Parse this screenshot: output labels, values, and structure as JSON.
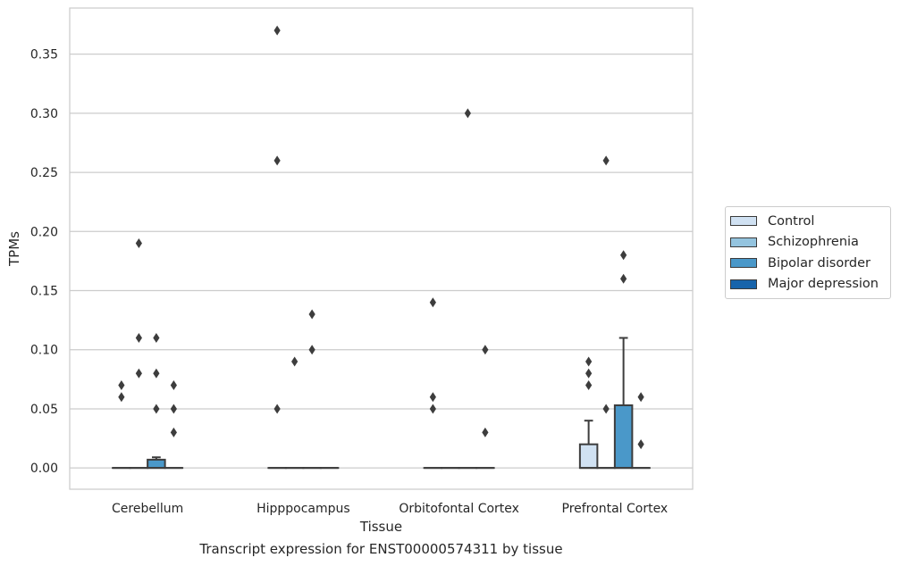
{
  "chart_data": {
    "type": "box",
    "title": "",
    "caption": "Transcript expression for ENST00000574311 by tissue",
    "xlabel": "Tissue",
    "ylabel": "TPMs",
    "ylim": [
      -0.018,
      0.389
    ],
    "yticks": [
      "0.00",
      "0.05",
      "0.10",
      "0.15",
      "0.20",
      "0.25",
      "0.30",
      "0.35"
    ],
    "ytick_values": [
      0,
      0.05,
      0.1,
      0.15,
      0.2,
      0.25,
      0.3,
      0.35
    ],
    "grid": "horizontal",
    "legend_position": "right",
    "categories": [
      "Cerebellum",
      "Hipppocampus",
      "Orbitofontal Cortex",
      "Prefrontal Cortex"
    ],
    "series": [
      {
        "name": "Control",
        "color": "#d0e1f2",
        "boxes": [
          {
            "q1": 0,
            "median": 0,
            "q3": 0,
            "whisker_low": 0,
            "whisker_high": 0,
            "outliers": [
              0.07,
              0.06
            ]
          },
          {
            "q1": 0,
            "median": 0,
            "q3": 0,
            "whisker_low": 0,
            "whisker_high": 0,
            "outliers": [
              0.37,
              0.26,
              0.05
            ]
          },
          {
            "q1": 0,
            "median": 0,
            "q3": 0,
            "whisker_low": 0,
            "whisker_high": 0,
            "outliers": [
              0.14,
              0.06,
              0.05
            ]
          },
          {
            "q1": 0,
            "median": 0,
            "q3": 0.02,
            "whisker_low": 0,
            "whisker_high": 0.04,
            "outliers": [
              0.09,
              0.08,
              0.07
            ]
          }
        ]
      },
      {
        "name": "Schizophrenia",
        "color": "#94c4df",
        "boxes": [
          {
            "q1": 0,
            "median": 0,
            "q3": 0,
            "whisker_low": 0,
            "whisker_high": 0,
            "outliers": [
              0.19,
              0.11,
              0.08
            ]
          },
          {
            "q1": 0,
            "median": 0,
            "q3": 0,
            "whisker_low": 0,
            "whisker_high": 0,
            "outliers": [
              0.09
            ]
          },
          {
            "q1": 0,
            "median": 0,
            "q3": 0,
            "whisker_low": 0,
            "whisker_high": 0,
            "outliers": []
          },
          {
            "q1": 0,
            "median": 0,
            "q3": 0,
            "whisker_low": 0,
            "whisker_high": 0,
            "outliers": [
              0.26,
              0.05
            ]
          }
        ]
      },
      {
        "name": "Bipolar disorder",
        "color": "#4a98c9",
        "boxes": [
          {
            "q1": 0,
            "median": 0,
            "q3": 0.007,
            "whisker_low": 0,
            "whisker_high": 0.009,
            "outliers": [
              0.11,
              0.08,
              0.05
            ]
          },
          {
            "q1": 0,
            "median": 0,
            "q3": 0,
            "whisker_low": 0,
            "whisker_high": 0,
            "outliers": [
              0.13,
              0.1
            ]
          },
          {
            "q1": 0,
            "median": 0,
            "q3": 0,
            "whisker_low": 0,
            "whisker_high": 0,
            "outliers": [
              0.3
            ]
          },
          {
            "q1": 0,
            "median": 0,
            "q3": 0.053,
            "whisker_low": 0,
            "whisker_high": 0.11,
            "outliers": [
              0.18,
              0.16
            ]
          }
        ]
      },
      {
        "name": "Major depression",
        "color": "#1764ab",
        "boxes": [
          {
            "q1": 0,
            "median": 0,
            "q3": 0,
            "whisker_low": 0,
            "whisker_high": 0,
            "outliers": [
              0.07,
              0.05,
              0.03
            ]
          },
          {
            "q1": 0,
            "median": 0,
            "q3": 0,
            "whisker_low": 0,
            "whisker_high": 0,
            "outliers": []
          },
          {
            "q1": 0,
            "median": 0,
            "q3": 0,
            "whisker_low": 0,
            "whisker_high": 0,
            "outliers": [
              0.1,
              0.03
            ]
          },
          {
            "q1": 0,
            "median": 0,
            "q3": 0,
            "whisker_low": 0,
            "whisker_high": 0,
            "outliers": [
              0.06,
              0.02
            ]
          }
        ]
      }
    ]
  }
}
